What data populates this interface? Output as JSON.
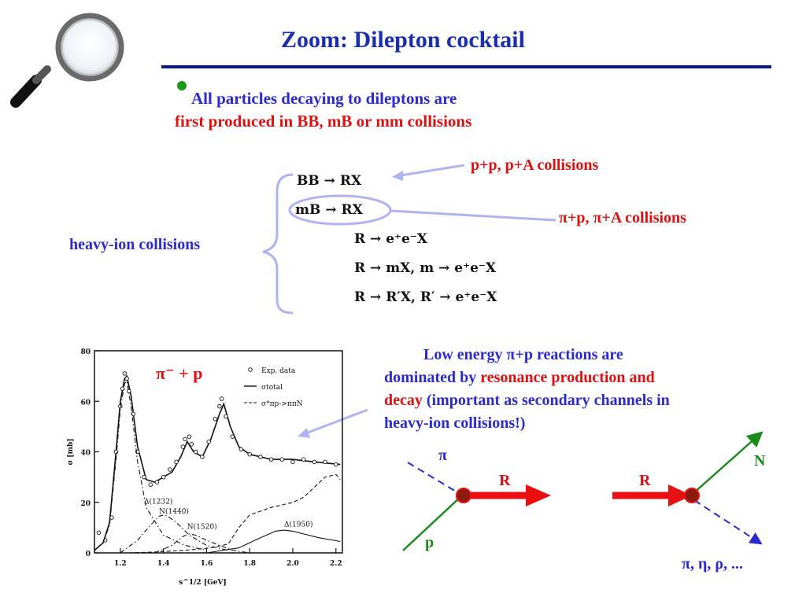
{
  "slide": {
    "title": "Zoom:   Dilepton cocktail",
    "bullet_line1": "All particles decaying to dileptons are",
    "bullet_line2": "first produced in BB, mB or mm collisions",
    "equations": [
      "BB → RX",
      "mB → RX",
      "R → e⁺e⁻X",
      "R → mX,  m → e⁺e⁻X",
      "R → R′X,  R′ → e⁺e⁻X"
    ],
    "label_pp": "p+p, p+A collisions",
    "label_pip": "π+p, π+A collisions",
    "label_heavy": "heavy-ion collisions",
    "para": {
      "p1": "Low energy  π+p reactions  are",
      "p2": "dominated by ",
      "p3": "resonance production and",
      "p4": "decay",
      "p5": " (important as secondary channels in",
      "p6": "heavy-ion collisions!)"
    },
    "diagram": {
      "pi": "π",
      "p": "p",
      "R1": "R",
      "R2": "R",
      "N": "N",
      "products": "π, η, ρ, ..."
    },
    "colors": {
      "title": "#1a2fb0",
      "rule": "#0a1a8a",
      "blue_text": "#2a2ad0",
      "red_text": "#e01010",
      "green_line": "#1a8a1a",
      "red_arrow": "#e81010",
      "vertex": "#8b1a10"
    }
  },
  "chart_data": {
    "type": "line",
    "title": "π⁻ + p",
    "xlabel": "s^1/2 [GeV]",
    "ylabel": "σ [mb]",
    "xlim": [
      1.08,
      2.23
    ],
    "ylim": [
      0,
      80
    ],
    "xticks": [
      "1.2",
      "1.4",
      "1.6",
      "1.8",
      "2.0",
      "2.2"
    ],
    "yticks": [
      "0",
      "20",
      "40",
      "60",
      "80"
    ],
    "legend": {
      "placement": "top-right",
      "entries": [
        "Exp. data",
        "σtotal",
        "σ*πp->ππN"
      ]
    },
    "annotations": [
      "Δ(1232)",
      "N(1440)",
      "N(1520)",
      "Δ(1950)"
    ],
    "series": [
      {
        "name": "σtotal",
        "style": "solid",
        "x": [
          1.08,
          1.12,
          1.15,
          1.18,
          1.2,
          1.22,
          1.23,
          1.25,
          1.28,
          1.32,
          1.36,
          1.4,
          1.44,
          1.48,
          1.51,
          1.54,
          1.58,
          1.62,
          1.66,
          1.68,
          1.71,
          1.75,
          1.8,
          1.9,
          2.0,
          2.1,
          2.22
        ],
        "y": [
          1,
          4,
          12,
          40,
          60,
          69,
          70,
          62,
          42,
          29,
          28,
          30,
          32,
          38,
          44,
          40,
          38,
          45,
          55,
          59,
          50,
          42,
          39,
          37,
          37,
          36,
          35
        ]
      },
      {
        "name": "Exp. data",
        "style": "points",
        "x": [
          1.1,
          1.13,
          1.16,
          1.18,
          1.2,
          1.21,
          1.22,
          1.23,
          1.24,
          1.26,
          1.28,
          1.31,
          1.34,
          1.37,
          1.4,
          1.43,
          1.46,
          1.49,
          1.5,
          1.52,
          1.53,
          1.55,
          1.58,
          1.61,
          1.64,
          1.66,
          1.67,
          1.69,
          1.72,
          1.76,
          1.8,
          1.85,
          1.9,
          1.95,
          2.0,
          2.05,
          2.1,
          2.15,
          2.2
        ],
        "y": [
          8,
          5,
          14,
          40,
          58,
          65,
          71,
          69,
          64,
          55,
          40,
          30,
          27,
          28,
          30,
          33,
          36,
          42,
          45,
          46,
          43,
          40,
          38,
          44,
          53,
          58,
          61,
          54,
          46,
          41,
          39,
          38,
          37,
          37,
          36,
          37,
          36,
          36,
          35
        ]
      },
      {
        "name": "Δ(1232)",
        "style": "dashdot",
        "x": [
          1.08,
          1.12,
          1.15,
          1.18,
          1.2,
          1.22,
          1.23,
          1.25,
          1.28,
          1.32,
          1.4,
          1.5,
          1.6
        ],
        "y": [
          1,
          4,
          11,
          37,
          57,
          67,
          68,
          58,
          36,
          18,
          7,
          3,
          1
        ]
      },
      {
        "name": "N(1440)",
        "style": "dashdot",
        "x": [
          1.2,
          1.28,
          1.34,
          1.38,
          1.4,
          1.42,
          1.46,
          1.52,
          1.6,
          1.7
        ],
        "y": [
          0,
          5,
          11,
          14.5,
          15,
          14.5,
          12,
          7,
          3,
          1
        ]
      },
      {
        "name": "N(1520)",
        "style": "dashdot",
        "x": [
          1.36,
          1.44,
          1.49,
          1.52,
          1.55,
          1.6,
          1.66,
          1.72,
          1.8
        ],
        "y": [
          0,
          3,
          6.5,
          7.5,
          7,
          5,
          3,
          1,
          0
        ]
      },
      {
        "name": "Δ(1950)",
        "style": "solid",
        "x": [
          1.6,
          1.75,
          1.85,
          1.92,
          1.96,
          2.0,
          2.05,
          2.12,
          2.22
        ],
        "y": [
          0,
          2,
          6,
          8.6,
          9,
          8.6,
          7.5,
          6,
          4.5
        ]
      },
      {
        "name": "σ*πp->ππN",
        "style": "dashed",
        "x": [
          1.24,
          1.35,
          1.5,
          1.62,
          1.7,
          1.75,
          1.8,
          1.9,
          2.0,
          2.05,
          2.1,
          2.15,
          2.2,
          2.22
        ],
        "y": [
          0,
          0.3,
          1,
          2,
          3.5,
          10,
          15,
          18,
          20,
          22,
          26,
          30,
          31,
          29
        ]
      }
    ]
  }
}
